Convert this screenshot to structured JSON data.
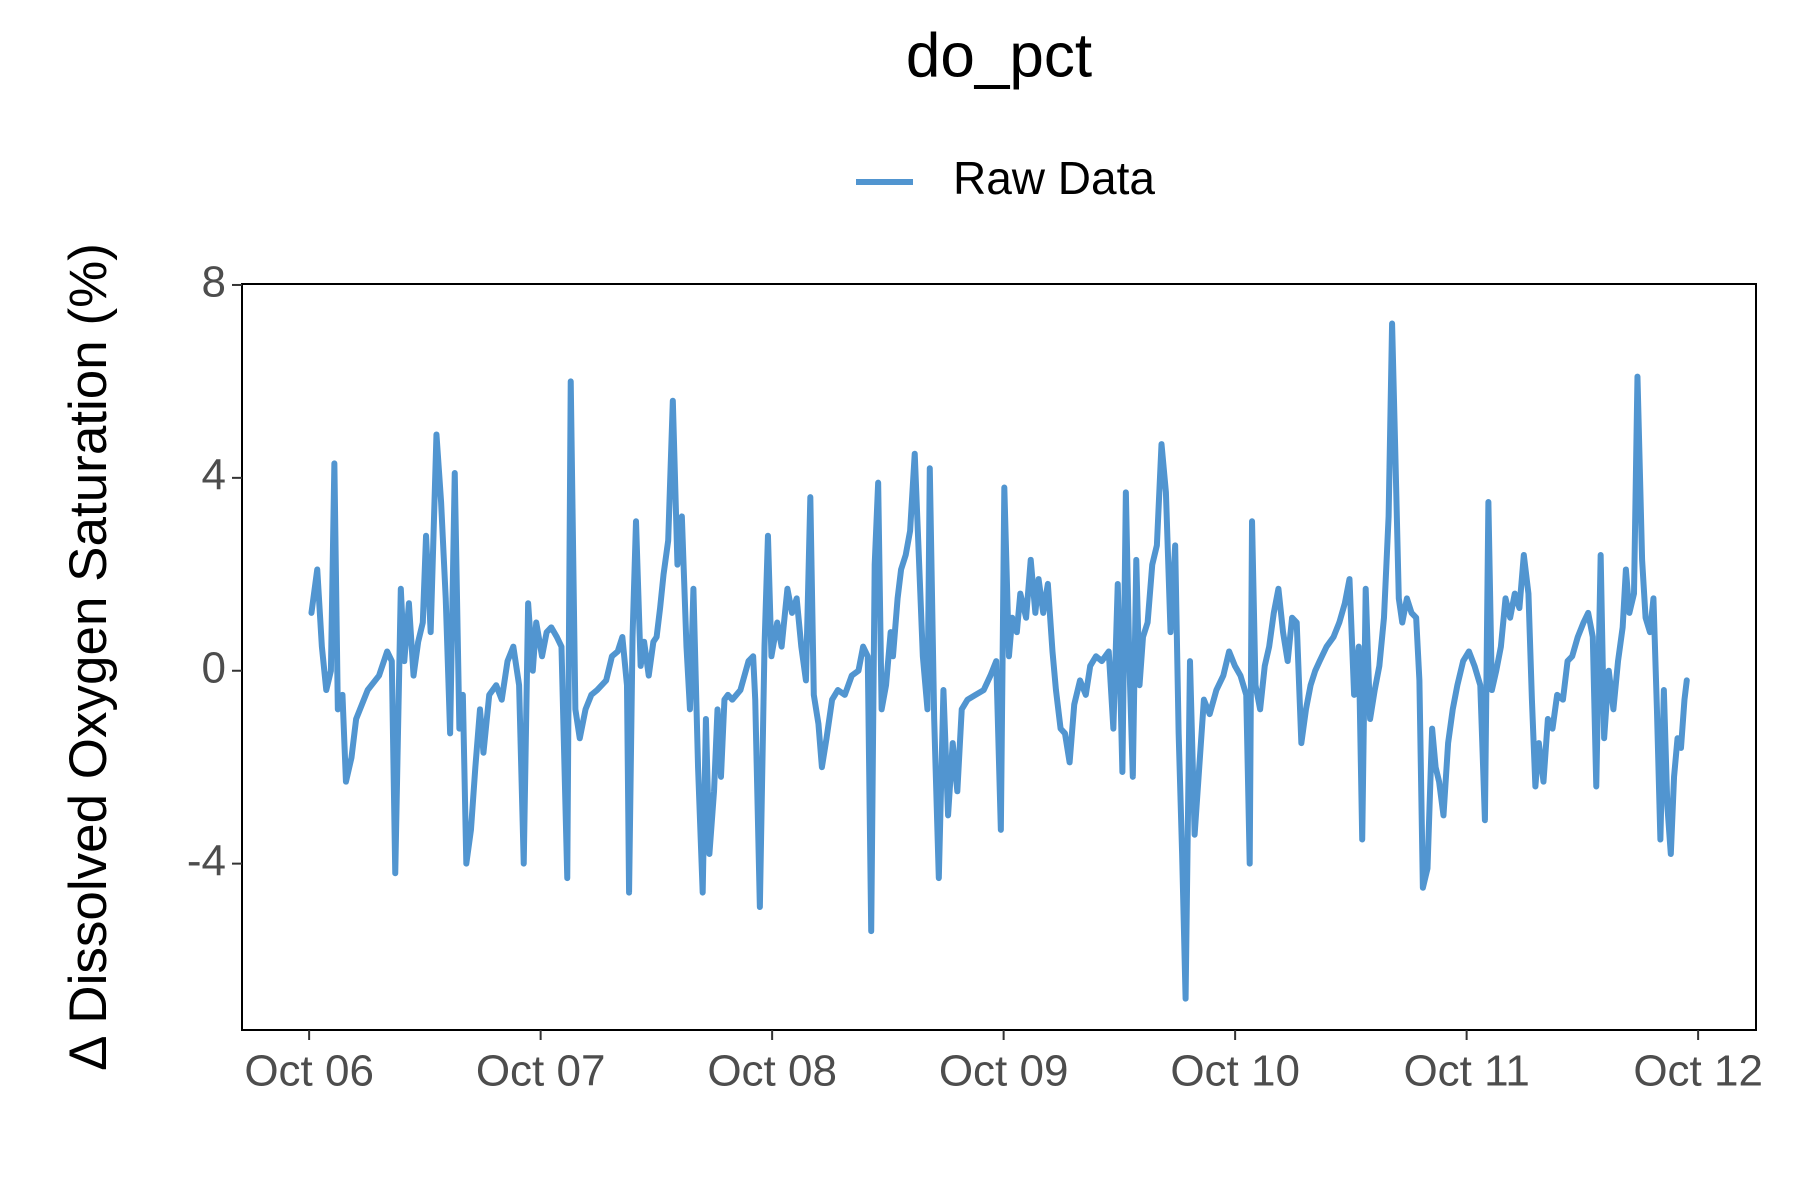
{
  "chart_data": {
    "type": "line",
    "title": "do_pct",
    "ylabel": "Δ Dissolved Oxygen Saturation (%)",
    "xlim": [
      -0.29,
      6.25
    ],
    "xticks": [
      {
        "value": 0,
        "label": "Oct 06"
      },
      {
        "value": 1,
        "label": "Oct 07"
      },
      {
        "value": 2,
        "label": "Oct 08"
      },
      {
        "value": 3,
        "label": "Oct 09"
      },
      {
        "value": 4,
        "label": "Oct 10"
      },
      {
        "value": 5,
        "label": "Oct 11"
      },
      {
        "value": 6,
        "label": "Oct 12"
      }
    ],
    "ylim": [
      -7.45,
      8.02
    ],
    "yticks": [
      -4,
      0,
      4,
      8
    ],
    "grid": false,
    "legend": "top",
    "x": [
      0.01,
      0.035,
      0.055,
      0.074,
      0.094,
      0.109,
      0.124,
      0.144,
      0.159,
      0.183,
      0.203,
      0.228,
      0.253,
      0.302,
      0.337,
      0.357,
      0.372,
      0.396,
      0.411,
      0.431,
      0.451,
      0.471,
      0.491,
      0.505,
      0.525,
      0.55,
      0.57,
      0.59,
      0.609,
      0.629,
      0.649,
      0.664,
      0.679,
      0.699,
      0.718,
      0.738,
      0.753,
      0.778,
      0.808,
      0.832,
      0.857,
      0.882,
      0.907,
      0.927,
      0.946,
      0.966,
      0.981,
      1.006,
      1.026,
      1.046,
      1.07,
      1.09,
      1.115,
      1.13,
      1.15,
      1.169,
      1.194,
      1.219,
      1.244,
      1.283,
      1.308,
      1.333,
      1.353,
      1.373,
      1.382,
      1.397,
      1.412,
      1.432,
      1.447,
      1.467,
      1.487,
      1.501,
      1.516,
      1.531,
      1.551,
      1.571,
      1.591,
      1.61,
      1.63,
      1.645,
      1.66,
      1.68,
      1.7,
      1.714,
      1.729,
      1.749,
      1.764,
      1.779,
      1.794,
      1.809,
      1.828,
      1.863,
      1.898,
      1.918,
      1.927,
      1.947,
      1.967,
      1.982,
      1.997,
      2.022,
      2.041,
      2.066,
      2.086,
      2.106,
      2.126,
      2.146,
      2.165,
      2.18,
      2.2,
      2.215,
      2.235,
      2.259,
      2.284,
      2.314,
      2.344,
      2.373,
      2.393,
      2.413,
      2.428,
      2.443,
      2.458,
      2.473,
      2.492,
      2.512,
      2.522,
      2.542,
      2.557,
      2.577,
      2.596,
      2.616,
      2.631,
      2.651,
      2.671,
      2.681,
      2.7,
      2.72,
      2.74,
      2.76,
      2.78,
      2.8,
      2.819,
      2.844,
      2.879,
      2.914,
      2.943,
      2.968,
      2.988,
      3.003,
      3.023,
      3.037,
      3.057,
      3.072,
      3.097,
      3.117,
      3.137,
      3.151,
      3.171,
      3.191,
      3.211,
      3.226,
      3.246,
      3.265,
      3.285,
      3.305,
      3.33,
      3.355,
      3.374,
      3.399,
      3.424,
      3.454,
      3.474,
      3.493,
      3.513,
      3.528,
      3.543,
      3.558,
      3.573,
      3.587,
      3.602,
      3.622,
      3.642,
      3.662,
      3.682,
      3.701,
      3.721,
      3.741,
      3.756,
      3.771,
      3.786,
      3.805,
      3.825,
      3.845,
      3.865,
      3.89,
      3.919,
      3.949,
      3.974,
      3.999,
      4.023,
      4.048,
      4.063,
      4.073,
      4.088,
      4.108,
      4.128,
      4.147,
      4.167,
      4.187,
      4.207,
      4.227,
      4.246,
      4.266,
      4.286,
      4.306,
      4.326,
      4.346,
      4.365,
      4.395,
      4.425,
      4.45,
      4.474,
      4.494,
      4.514,
      4.534,
      4.549,
      4.564,
      4.583,
      4.603,
      4.623,
      4.643,
      4.663,
      4.678,
      4.692,
      4.707,
      4.722,
      4.742,
      4.762,
      4.782,
      4.796,
      4.811,
      4.831,
      4.851,
      4.866,
      4.881,
      4.9,
      4.92,
      4.94,
      4.96,
      4.985,
      5.01,
      5.034,
      5.059,
      5.079,
      5.094,
      5.109,
      5.128,
      5.148,
      5.168,
      5.188,
      5.208,
      5.228,
      5.247,
      5.267,
      5.282,
      5.297,
      5.312,
      5.332,
      5.351,
      5.371,
      5.391,
      5.416,
      5.436,
      5.456,
      5.48,
      5.505,
      5.525,
      5.545,
      5.56,
      5.579,
      5.594,
      5.614,
      5.634,
      5.654,
      5.674,
      5.688,
      5.703,
      5.723,
      5.738,
      5.758,
      5.773,
      5.792,
      5.807,
      5.822,
      5.837,
      5.852,
      5.867,
      5.882,
      5.896,
      5.911,
      5.926,
      5.941,
      5.951
    ],
    "series": [
      {
        "name": "Raw Data",
        "color": "#5195d0",
        "values": [
          1.2,
          2.1,
          0.5,
          -0.4,
          0,
          4.3,
          -0.8,
          -0.5,
          -2.3,
          -1.8,
          -1,
          -0.7,
          -0.4,
          -0.1,
          0.4,
          0.2,
          -4.2,
          1.7,
          0.2,
          1.4,
          -0.1,
          0.6,
          1.0,
          2.8,
          0.8,
          4.9,
          3.5,
          1.5,
          -1.3,
          4.1,
          -1.2,
          -0.5,
          -4.0,
          -3.3,
          -2,
          -0.8,
          -1.7,
          -0.5,
          -0.3,
          -0.6,
          0.2,
          0.5,
          -0.3,
          -4.0,
          1.4,
          0.0,
          1.0,
          0.3,
          0.8,
          0.9,
          0.7,
          0.5,
          -4.3,
          6.0,
          -0.8,
          -1.4,
          -0.8,
          -0.5,
          -0.4,
          -0.2,
          0.3,
          0.4,
          0.7,
          -0.3,
          -4.6,
          0.7,
          3.1,
          0.1,
          0.6,
          -0.1,
          0.6,
          0.7,
          1.3,
          2.0,
          2.7,
          5.6,
          2.2,
          3.2,
          0.5,
          -0.8,
          1.7,
          -2.0,
          -4.6,
          -1.0,
          -3.8,
          -2.5,
          -0.8,
          -2.2,
          -0.6,
          -0.5,
          -0.6,
          -0.4,
          0.2,
          0.3,
          -0.6,
          -4.9,
          0.5,
          2.8,
          0.3,
          1.0,
          0.5,
          1.7,
          1.2,
          1.5,
          0.5,
          -0.2,
          3.6,
          -0.5,
          -1.1,
          -2.0,
          -1.4,
          -0.6,
          -0.4,
          -0.5,
          -0.1,
          0.0,
          0.5,
          0.3,
          -5.4,
          2.2,
          3.9,
          -0.8,
          -0.3,
          0.8,
          0.3,
          1.5,
          2.1,
          2.4,
          2.9,
          4.5,
          2.7,
          0.3,
          -0.8,
          4.2,
          -1.0,
          -4.3,
          -0.4,
          -3.0,
          -1.5,
          -2.5,
          -0.8,
          -0.6,
          -0.5,
          -0.4,
          -0.1,
          0.2,
          -3.3,
          3.8,
          0.3,
          1.1,
          0.8,
          1.6,
          1.1,
          2.3,
          1.2,
          1.9,
          1.2,
          1.8,
          0.4,
          -0.4,
          -1.2,
          -1.3,
          -1.9,
          -0.7,
          -0.2,
          -0.5,
          0.1,
          0.3,
          0.2,
          0.4,
          -1.2,
          1.8,
          -2.1,
          3.7,
          0.2,
          -2.2,
          2.3,
          -0.3,
          0.7,
          1.0,
          2.2,
          2.6,
          4.7,
          3.7,
          0.8,
          2.6,
          -1.3,
          -3.8,
          -6.8,
          0.2,
          -3.4,
          -2.0,
          -0.6,
          -0.9,
          -0.4,
          -0.1,
          0.4,
          0.1,
          -0.1,
          -0.5,
          -4.0,
          3.1,
          -0.3,
          -0.8,
          0.1,
          0.5,
          1.2,
          1.7,
          0.8,
          0.2,
          1.1,
          1.0,
          -1.5,
          -0.8,
          -0.3,
          0.0,
          0.2,
          0.5,
          0.7,
          1.0,
          1.4,
          1.9,
          -0.5,
          0.5,
          -3.5,
          1.7,
          -1.0,
          -0.4,
          0.1,
          1.1,
          3.2,
          7.2,
          4.5,
          1.5,
          1.0,
          1.5,
          1.2,
          1.1,
          -0.2,
          -4.5,
          -4.1,
          -1.2,
          -2.0,
          -2.3,
          -3.0,
          -1.5,
          -0.8,
          -0.3,
          0.2,
          0.4,
          0.1,
          -0.3,
          -3.1,
          3.5,
          -0.4,
          0.0,
          0.5,
          1.5,
          1.1,
          1.6,
          1.3,
          2.4,
          1.6,
          -0.6,
          -2.4,
          -1.5,
          -2.3,
          -1.0,
          -1.2,
          -0.5,
          -0.6,
          0.2,
          0.3,
          0.7,
          1.0,
          1.2,
          0.7,
          -2.4,
          2.4,
          -1.4,
          0.0,
          -0.8,
          0.2,
          0.9,
          2.1,
          1.2,
          1.6,
          6.1,
          2.3,
          1.1,
          0.8,
          1.5,
          -0.8,
          -3.5,
          -0.4,
          -2.8,
          -3.8,
          -2.2,
          -1.4,
          -1.6,
          -0.6,
          -0.2
        ]
      }
    ]
  }
}
